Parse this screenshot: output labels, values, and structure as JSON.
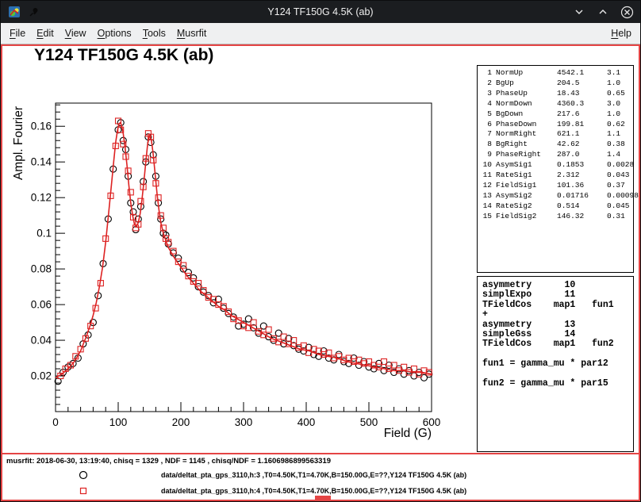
{
  "colors": {
    "accent_red": "#dd2222",
    "highlight_red": "#e44444",
    "marker_black": "#000000",
    "titlebar_bg": "#1b1d20",
    "menubar_bg": "#eff0f1"
  },
  "titlebar": {
    "title": "Y124 TF150G 4.5K (ab)",
    "icons": [
      "app-icon",
      "pin-icon",
      "minimize",
      "maximize",
      "close"
    ]
  },
  "menubar": {
    "items": [
      {
        "accel": "F",
        "rest": "ile"
      },
      {
        "accel": "E",
        "rest": "dit"
      },
      {
        "accel": "V",
        "rest": "iew"
      },
      {
        "accel": "O",
        "rest": "ptions"
      },
      {
        "accel": "T",
        "rest": "ools"
      },
      {
        "accel": "M",
        "rest": "usrfit"
      }
    ],
    "help": {
      "accel": "H",
      "rest": "elp"
    }
  },
  "plot": {
    "title": "Y124 TF150G 4.5K (ab)"
  },
  "chart_data": {
    "type": "scatter",
    "title": "Y124 TF150G 4.5K (ab)",
    "xlabel": "Field (G)",
    "ylabel": "Ampl. Fourier",
    "xlim": [
      0,
      600
    ],
    "ylim": [
      0,
      0.173
    ],
    "xticks": [
      0,
      100,
      200,
      300,
      400,
      500,
      600
    ],
    "yticks": [
      0.02,
      0.04,
      0.06,
      0.08,
      0.1,
      0.12,
      0.14,
      0.16
    ],
    "grid": false,
    "legend_position": "below",
    "series": [
      {
        "name": "data/deltat_pta_gps_3110 h:3",
        "marker": "circle",
        "color": "#000000",
        "points": [
          [
            4,
            0.017
          ],
          [
            12,
            0.022
          ],
          [
            20,
            0.025
          ],
          [
            28,
            0.027
          ],
          [
            36,
            0.03
          ],
          [
            44,
            0.038
          ],
          [
            52,
            0.043
          ],
          [
            60,
            0.05
          ],
          [
            68,
            0.065
          ],
          [
            76,
            0.083
          ],
          [
            84,
            0.108
          ],
          [
            92,
            0.136
          ],
          [
            100,
            0.158
          ],
          [
            104,
            0.162
          ],
          [
            108,
            0.152
          ],
          [
            112,
            0.147
          ],
          [
            116,
            0.132
          ],
          [
            120,
            0.117
          ],
          [
            124,
            0.112
          ],
          [
            128,
            0.102
          ],
          [
            132,
            0.108
          ],
          [
            136,
            0.115
          ],
          [
            140,
            0.129
          ],
          [
            144,
            0.14
          ],
          [
            148,
            0.154
          ],
          [
            152,
            0.151
          ],
          [
            156,
            0.144
          ],
          [
            160,
            0.132
          ],
          [
            164,
            0.117
          ],
          [
            168,
            0.108
          ],
          [
            172,
            0.1
          ],
          [
            176,
            0.099
          ],
          [
            180,
            0.094
          ],
          [
            188,
            0.089
          ],
          [
            196,
            0.086
          ],
          [
            204,
            0.08
          ],
          [
            212,
            0.078
          ],
          [
            220,
            0.075
          ],
          [
            228,
            0.07
          ],
          [
            236,
            0.067
          ],
          [
            244,
            0.065
          ],
          [
            252,
            0.061
          ],
          [
            260,
            0.063
          ],
          [
            268,
            0.058
          ],
          [
            276,
            0.055
          ],
          [
            284,
            0.053
          ],
          [
            292,
            0.048
          ],
          [
            300,
            0.049
          ],
          [
            308,
            0.052
          ],
          [
            316,
            0.047
          ],
          [
            324,
            0.044
          ],
          [
            332,
            0.048
          ],
          [
            340,
            0.042
          ],
          [
            348,
            0.04
          ],
          [
            356,
            0.044
          ],
          [
            364,
            0.038
          ],
          [
            372,
            0.041
          ],
          [
            380,
            0.037
          ],
          [
            388,
            0.035
          ],
          [
            396,
            0.034
          ],
          [
            404,
            0.036
          ],
          [
            412,
            0.032
          ],
          [
            420,
            0.031
          ],
          [
            428,
            0.034
          ],
          [
            436,
            0.03
          ],
          [
            444,
            0.029
          ],
          [
            452,
            0.032
          ],
          [
            460,
            0.028
          ],
          [
            468,
            0.027
          ],
          [
            476,
            0.03
          ],
          [
            484,
            0.026
          ],
          [
            492,
            0.028
          ],
          [
            500,
            0.025
          ],
          [
            508,
            0.024
          ],
          [
            516,
            0.027
          ],
          [
            524,
            0.023
          ],
          [
            532,
            0.026
          ],
          [
            540,
            0.022
          ],
          [
            548,
            0.024
          ],
          [
            556,
            0.021
          ],
          [
            564,
            0.023
          ],
          [
            572,
            0.02
          ],
          [
            580,
            0.022
          ],
          [
            588,
            0.019
          ],
          [
            596,
            0.021
          ]
        ]
      },
      {
        "name": "fit",
        "type": "line",
        "color": "#dd2222",
        "x": [
          0,
          10,
          20,
          30,
          40,
          50,
          55,
          60,
          65,
          70,
          75,
          80,
          85,
          90,
          93,
          96,
          99,
          101,
          103,
          105,
          108,
          111,
          114,
          117,
          120,
          123,
          126,
          129,
          132,
          135,
          138,
          141,
          144,
          147,
          150,
          153,
          156,
          159,
          162,
          165,
          168,
          172,
          176,
          180,
          185,
          190,
          200,
          210,
          220,
          230,
          240,
          250,
          260,
          270,
          280,
          290,
          300,
          315,
          330,
          345,
          360,
          375,
          390,
          405,
          420,
          435,
          450,
          465,
          480,
          495,
          510,
          525,
          540,
          555,
          570,
          585,
          600
        ],
        "y": [
          0.019,
          0.021,
          0.024,
          0.028,
          0.034,
          0.043,
          0.048,
          0.054,
          0.061,
          0.07,
          0.081,
          0.095,
          0.112,
          0.13,
          0.141,
          0.151,
          0.158,
          0.161,
          0.162,
          0.161,
          0.156,
          0.148,
          0.138,
          0.127,
          0.117,
          0.11,
          0.105,
          0.104,
          0.106,
          0.111,
          0.119,
          0.129,
          0.14,
          0.15,
          0.155,
          0.152,
          0.144,
          0.133,
          0.122,
          0.113,
          0.106,
          0.1,
          0.096,
          0.092,
          0.089,
          0.086,
          0.081,
          0.076,
          0.072,
          0.068,
          0.065,
          0.062,
          0.059,
          0.057,
          0.054,
          0.052,
          0.05,
          0.047,
          0.044,
          0.041,
          0.039,
          0.037,
          0.035,
          0.034,
          0.032,
          0.031,
          0.03,
          0.028,
          0.027,
          0.026,
          0.025,
          0.024,
          0.023,
          0.023,
          0.022,
          0.022,
          0.021
        ]
      },
      {
        "name": "data/deltat_pta_gps_3110 h:4",
        "marker": "square",
        "color": "#dd2222",
        "points": [
          [
            8,
            0.02
          ],
          [
            16,
            0.024
          ],
          [
            24,
            0.026
          ],
          [
            32,
            0.031
          ],
          [
            40,
            0.035
          ],
          [
            48,
            0.041
          ],
          [
            56,
            0.048
          ],
          [
            64,
            0.058
          ],
          [
            72,
            0.072
          ],
          [
            80,
            0.097
          ],
          [
            88,
            0.121
          ],
          [
            96,
            0.149
          ],
          [
            100,
            0.163
          ],
          [
            104,
            0.158
          ],
          [
            108,
            0.15
          ],
          [
            112,
            0.143
          ],
          [
            116,
            0.135
          ],
          [
            120,
            0.123
          ],
          [
            124,
            0.109
          ],
          [
            128,
            0.103
          ],
          [
            132,
            0.105
          ],
          [
            136,
            0.118
          ],
          [
            140,
            0.126
          ],
          [
            144,
            0.142
          ],
          [
            148,
            0.156
          ],
          [
            152,
            0.154
          ],
          [
            156,
            0.141
          ],
          [
            160,
            0.128
          ],
          [
            164,
            0.12
          ],
          [
            168,
            0.11
          ],
          [
            172,
            0.103
          ],
          [
            176,
            0.097
          ],
          [
            180,
            0.095
          ],
          [
            188,
            0.09
          ],
          [
            196,
            0.084
          ],
          [
            204,
            0.082
          ],
          [
            212,
            0.076
          ],
          [
            220,
            0.073
          ],
          [
            228,
            0.072
          ],
          [
            236,
            0.068
          ],
          [
            244,
            0.064
          ],
          [
            252,
            0.063
          ],
          [
            260,
            0.06
          ],
          [
            268,
            0.059
          ],
          [
            276,
            0.056
          ],
          [
            284,
            0.052
          ],
          [
            292,
            0.051
          ],
          [
            300,
            0.048
          ],
          [
            308,
            0.047
          ],
          [
            316,
            0.05
          ],
          [
            324,
            0.045
          ],
          [
            332,
            0.043
          ],
          [
            340,
            0.046
          ],
          [
            348,
            0.041
          ],
          [
            356,
            0.039
          ],
          [
            364,
            0.042
          ],
          [
            372,
            0.038
          ],
          [
            380,
            0.04
          ],
          [
            388,
            0.036
          ],
          [
            396,
            0.037
          ],
          [
            404,
            0.033
          ],
          [
            412,
            0.035
          ],
          [
            420,
            0.034
          ],
          [
            428,
            0.032
          ],
          [
            436,
            0.033
          ],
          [
            444,
            0.03
          ],
          [
            452,
            0.031
          ],
          [
            460,
            0.029
          ],
          [
            468,
            0.03
          ],
          [
            476,
            0.028
          ],
          [
            484,
            0.029
          ],
          [
            492,
            0.027
          ],
          [
            500,
            0.028
          ],
          [
            508,
            0.026
          ],
          [
            516,
            0.025
          ],
          [
            524,
            0.028
          ],
          [
            532,
            0.024
          ],
          [
            540,
            0.026
          ],
          [
            548,
            0.023
          ],
          [
            556,
            0.025
          ],
          [
            564,
            0.022
          ],
          [
            572,
            0.024
          ],
          [
            580,
            0.021
          ],
          [
            588,
            0.023
          ],
          [
            596,
            0.022
          ]
        ]
      }
    ]
  },
  "parameters": {
    "rows": [
      {
        "n": "1",
        "name": "NormUp",
        "value": "4542.1",
        "error": "3.1"
      },
      {
        "n": "2",
        "name": "BgUp",
        "value": "204.5",
        "error": "1.0"
      },
      {
        "n": "3",
        "name": "PhaseUp",
        "value": "18.43",
        "error": "0.65"
      },
      {
        "n": "4",
        "name": "NormDown",
        "value": "4360.3",
        "error": "3.0"
      },
      {
        "n": "5",
        "name": "BgDown",
        "value": "217.6",
        "error": "1.0"
      },
      {
        "n": "6",
        "name": "PhaseDown",
        "value": "199.81",
        "error": "0.62"
      },
      {
        "n": "7",
        "name": "NormRight",
        "value": "621.1",
        "error": "1.1"
      },
      {
        "n": "8",
        "name": "BgRight",
        "value": "42.62",
        "error": "0.38"
      },
      {
        "n": "9",
        "name": "PhaseRight",
        "value": "287.0",
        "error": "1.4"
      },
      {
        "n": "10",
        "name": "AsymSig1",
        "value": "0.1853",
        "error": "0.0028"
      },
      {
        "n": "11",
        "name": "RateSig1",
        "value": "2.312",
        "error": "0.043"
      },
      {
        "n": "12",
        "name": "FieldSig1",
        "value": "101.36",
        "error": "0.37"
      },
      {
        "n": "13",
        "name": "AsymSig2",
        "value": "0.01716",
        "error": "0.00098"
      },
      {
        "n": "14",
        "name": "RateSig2",
        "value": "0.514",
        "error": "0.045"
      },
      {
        "n": "15",
        "name": "FieldSig2",
        "value": "146.32",
        "error": "0.31"
      }
    ]
  },
  "theory": {
    "lines": [
      "asymmetry      10",
      "simplExpo      11",
      "TFieldCos    map1   fun1",
      "+",
      "asymmetry      13",
      "simpleGss      14",
      "TFieldCos    map1   fun2",
      "",
      "fun1 = gamma_mu * par12",
      "",
      "fun2 = gamma_mu * par15"
    ]
  },
  "status": {
    "text": "musrfit: 2018-06-30, 13:19:40, chisq = 1329 , NDF = 1145 , chisq/NDF = 1.1606986899563319"
  },
  "legend": {
    "entries": [
      {
        "marker": "circle",
        "color": "#000000",
        "text": "data/deltat_pta_gps_3110,h:3 ,T0=4.50K,T1=4.70K,B=150.00G,E=??,Y124 TF150G 4.5K (ab)"
      },
      {
        "marker": "square",
        "color": "#dd2222",
        "text": "data/deltat_pta_gps_3110,h:4 ,T0=4.50K,T1=4.70K,B=150.00G,E=??,Y124 TF150G 4.5K (ab)"
      }
    ]
  }
}
